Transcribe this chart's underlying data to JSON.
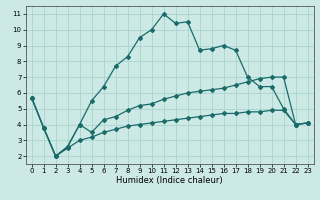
{
  "background_color": "#cce9e5",
  "grid_color": "#aad4cf",
  "line_color": "#1a6b6a",
  "marker_style": "D",
  "marker_size": 2.0,
  "line_width": 0.9,
  "xlabel": "Humidex (Indice chaleur)",
  "xlim": [
    -0.5,
    23.5
  ],
  "ylim": [
    1.5,
    11.5
  ],
  "xticks": [
    0,
    1,
    2,
    3,
    4,
    5,
    6,
    7,
    8,
    9,
    10,
    11,
    12,
    13,
    14,
    15,
    16,
    17,
    18,
    19,
    20,
    21,
    22,
    23
  ],
  "yticks": [
    2,
    3,
    4,
    5,
    6,
    7,
    8,
    9,
    10,
    11
  ],
  "series": [
    [
      5.7,
      3.8,
      2.0,
      2.6,
      4.0,
      5.5,
      6.4,
      7.7,
      8.3,
      9.5,
      10.0,
      11.0,
      10.4,
      10.5,
      8.7,
      8.8,
      9.0,
      8.7,
      7.0,
      6.4,
      6.4,
      5.0,
      4.0,
      4.1
    ],
    [
      5.7,
      3.8,
      2.0,
      2.6,
      4.0,
      3.5,
      4.3,
      4.5,
      4.9,
      5.2,
      5.3,
      5.6,
      5.8,
      6.0,
      6.1,
      6.2,
      6.3,
      6.5,
      6.7,
      6.9,
      7.0,
      7.0,
      4.0,
      4.1
    ],
    [
      5.7,
      3.8,
      2.0,
      2.5,
      3.0,
      3.2,
      3.5,
      3.7,
      3.9,
      4.0,
      4.1,
      4.2,
      4.3,
      4.4,
      4.5,
      4.6,
      4.7,
      4.7,
      4.8,
      4.8,
      4.9,
      4.9,
      4.0,
      4.1
    ]
  ],
  "tick_fontsize": 5.0,
  "xlabel_fontsize": 6.0
}
